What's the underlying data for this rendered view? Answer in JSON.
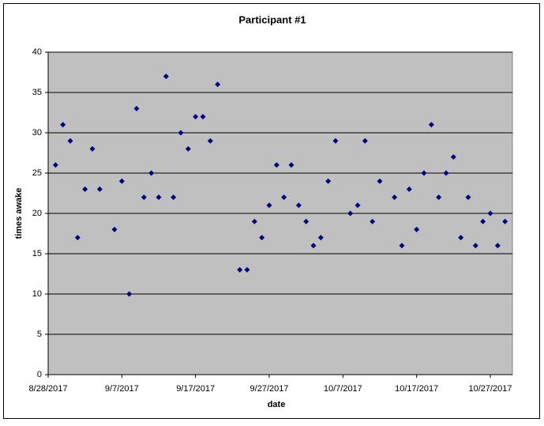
{
  "chart_data": {
    "type": "scatter",
    "title": "Participant #1",
    "x_label": "date",
    "y_label": "times awake",
    "x": [
      "2017-08-29",
      "2017-08-30",
      "2017-08-31",
      "2017-09-01",
      "2017-09-02",
      "2017-09-03",
      "2017-09-04",
      "2017-09-06",
      "2017-09-07",
      "2017-09-08",
      "2017-09-09",
      "2017-09-10",
      "2017-09-11",
      "2017-09-12",
      "2017-09-13",
      "2017-09-14",
      "2017-09-15",
      "2017-09-16",
      "2017-09-17",
      "2017-09-18",
      "2017-09-19",
      "2017-09-20",
      "2017-09-23",
      "2017-09-24",
      "2017-09-25",
      "2017-09-26",
      "2017-09-27",
      "2017-09-28",
      "2017-09-29",
      "2017-09-30",
      "2017-10-01",
      "2017-10-02",
      "2017-10-03",
      "2017-10-04",
      "2017-10-05",
      "2017-10-06",
      "2017-10-08",
      "2017-10-09",
      "2017-10-10",
      "2017-10-11",
      "2017-10-12",
      "2017-10-14",
      "2017-10-15",
      "2017-10-16",
      "2017-10-17",
      "2017-10-18",
      "2017-10-19",
      "2017-10-20",
      "2017-10-21",
      "2017-10-22",
      "2017-10-23",
      "2017-10-24",
      "2017-10-25",
      "2017-10-26",
      "2017-10-27",
      "2017-10-28",
      "2017-10-29"
    ],
    "values": [
      26,
      31,
      29,
      17,
      23,
      28,
      23,
      18,
      24,
      10,
      33,
      22,
      25,
      22,
      37,
      22,
      30,
      28,
      32,
      32,
      29,
      36,
      13,
      13,
      19,
      17,
      21,
      26,
      22,
      26,
      21,
      19,
      16,
      17,
      24,
      29,
      20,
      21,
      29,
      19,
      24,
      22,
      16,
      23,
      18,
      25,
      31,
      22,
      25,
      27,
      17,
      22,
      16,
      19,
      20,
      16,
      19
    ],
    "color": "#000080",
    "xlim": [
      "2017-08-28",
      "2017-10-30"
    ],
    "xticks": [
      {
        "value": "2017-08-28",
        "label": "8/28/2017"
      },
      {
        "value": "2017-09-07",
        "label": "9/7/2017"
      },
      {
        "value": "2017-09-17",
        "label": "9/17/2017"
      },
      {
        "value": "2017-09-27",
        "label": "9/27/2017"
      },
      {
        "value": "2017-10-07",
        "label": "10/7/2017"
      },
      {
        "value": "2017-10-17",
        "label": "10/17/2017"
      },
      {
        "value": "2017-10-27",
        "label": "10/27/2017"
      }
    ],
    "ylim": [
      0,
      40
    ],
    "yticks": [
      0,
      5,
      10,
      15,
      20,
      25,
      30,
      35,
      40
    ],
    "grid": true
  }
}
